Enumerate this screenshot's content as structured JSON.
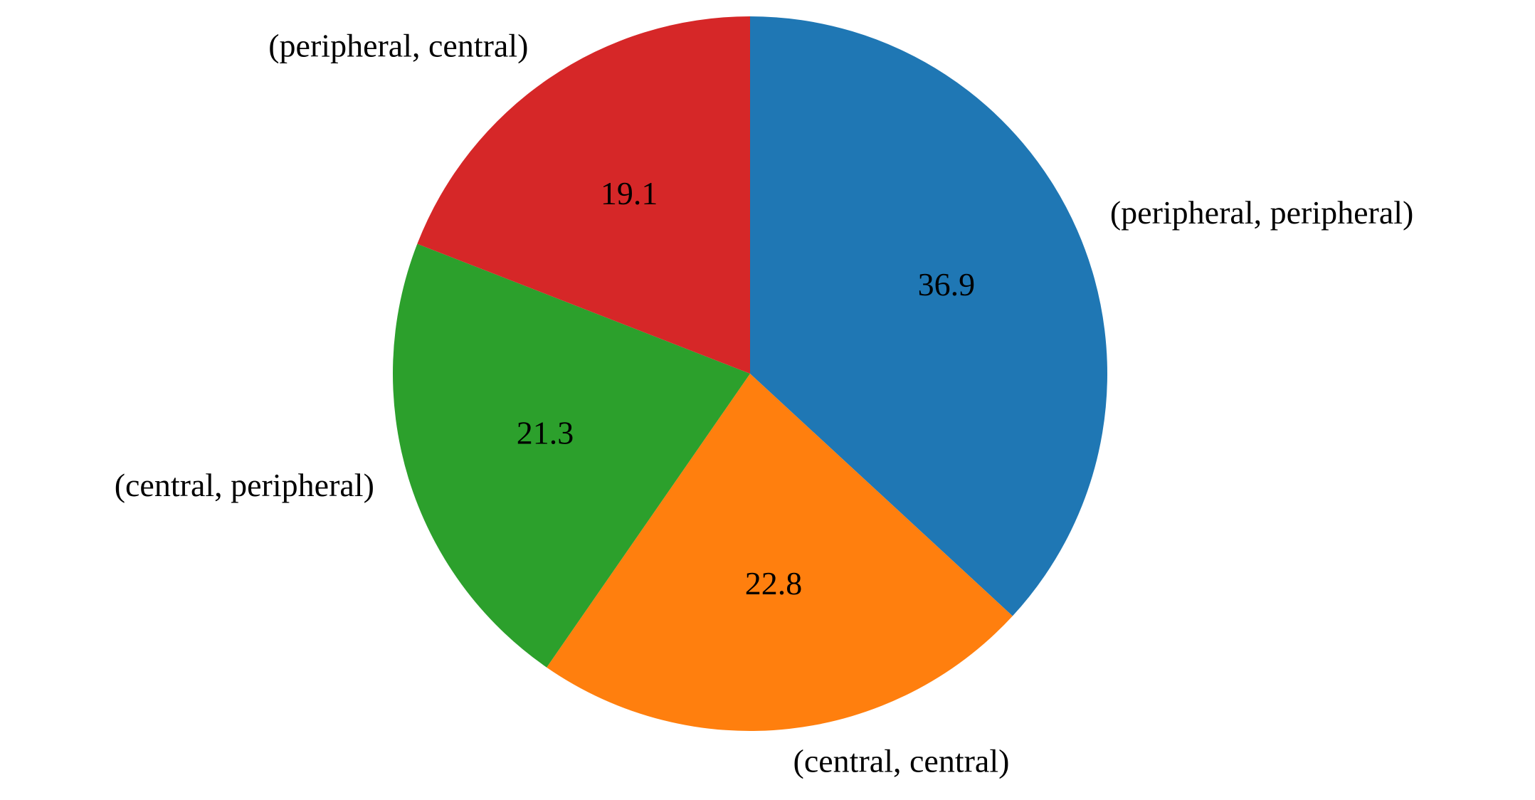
{
  "chart_data": {
    "type": "pie",
    "categories": [
      "(peripheral, peripheral)",
      "(central, central)",
      "(central, peripheral)",
      "(peripheral, central)"
    ],
    "values": [
      36.9,
      22.8,
      21.3,
      19.1
    ],
    "colors": [
      "#1f77b4",
      "#ff7f0e",
      "#2ca02c",
      "#d62728"
    ]
  }
}
